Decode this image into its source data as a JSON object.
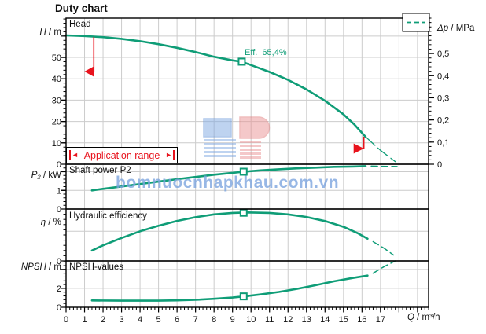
{
  "title": "Duty chart",
  "watermark": {
    "text": "bomnuocnhapkhau.com.vn",
    "logo_text": "LP"
  },
  "colors": {
    "curve": "#0f9d77",
    "red": "#e8131d",
    "grid": "#cccccc",
    "axis": "#000000",
    "watermark_text": "#7da5de",
    "logo_blue": "#7fa9e2",
    "logo_red": "#ea9394"
  },
  "x_axis": {
    "label_var": "Q",
    "label_unit": " / m³/h",
    "ticks": [
      0,
      1,
      2,
      3,
      4,
      5,
      6,
      7,
      8,
      9,
      10,
      11,
      12,
      13,
      14,
      15,
      16,
      17
    ],
    "min": 0,
    "max": 19.6
  },
  "chart_data": [
    {
      "type": "line",
      "panel": "head",
      "panel_title": "Head",
      "ylabel_var": "H",
      "ylabel_unit": " / m",
      "ylabel": "H / m",
      "ylim": [
        0,
        68.4
      ],
      "yticks": [
        0,
        10,
        20,
        30,
        40,
        50
      ],
      "y2label_var": "Δp",
      "y2label_unit": " / MPa",
      "y2label": "Δp / MPa",
      "y2lim": [
        0,
        0.66
      ],
      "y2ticks": [
        "0",
        "0,1",
        "0,2",
        "0,3",
        "0,4",
        "0,5"
      ],
      "legend": {
        "style": "dashed-teal-line",
        "position": "top-right"
      },
      "series": [
        {
          "name": "head-solid",
          "style": "solid",
          "points": [
            [
              0,
              60.3
            ],
            [
              1,
              60.0
            ],
            [
              2,
              59.5
            ],
            [
              3,
              58.7
            ],
            [
              4,
              57.6
            ],
            [
              5,
              56.2
            ],
            [
              6,
              54.5
            ],
            [
              7,
              52.5
            ],
            [
              8,
              50.3
            ],
            [
              9,
              48.6
            ],
            [
              9.5,
              48.0
            ],
            [
              10,
              46.4
            ],
            [
              11,
              43.2
            ],
            [
              12,
              39.5
            ],
            [
              13,
              35.0
            ],
            [
              14,
              29.7
            ],
            [
              15,
              23.3
            ],
            [
              15.6,
              18.5
            ],
            [
              16.2,
              12.8
            ]
          ]
        },
        {
          "name": "head-extrapolated",
          "style": "thin-dash",
          "points": [
            [
              16.2,
              12.8
            ],
            [
              17.0,
              6.5
            ],
            [
              17.8,
              1.2
            ]
          ]
        }
      ],
      "duty_point": {
        "q": 9.5,
        "value": 48.0,
        "label": "Eff.  65,4%"
      },
      "range_markers": {
        "left_q": 1.5,
        "right_q": 16.1
      },
      "range_label": "Application range",
      "range_arrows": {
        "left": "◄",
        "right": "►"
      }
    },
    {
      "type": "line",
      "panel": "p2",
      "panel_title": "Shaft power P2",
      "ylabel_var": "P₂",
      "ylabel_unit": " / kW",
      "ylabel": "P2 / kW",
      "ylim": [
        0,
        2.4
      ],
      "yticks": [
        0,
        1
      ],
      "series": [
        {
          "name": "p2-solid",
          "style": "solid",
          "points": [
            [
              1.4,
              1.0
            ],
            [
              2,
              1.08
            ],
            [
              3,
              1.21
            ],
            [
              4,
              1.34
            ],
            [
              5,
              1.47
            ],
            [
              6,
              1.6
            ],
            [
              7,
              1.72
            ],
            [
              8,
              1.84
            ],
            [
              9,
              1.94
            ],
            [
              9.6,
              2.0
            ],
            [
              10.5,
              2.07
            ],
            [
              11.5,
              2.13
            ],
            [
              12.5,
              2.18
            ],
            [
              13.5,
              2.22
            ],
            [
              14.5,
              2.26
            ],
            [
              15.5,
              2.28
            ],
            [
              16.2,
              2.3
            ]
          ]
        },
        {
          "name": "p2-extrapolated",
          "style": "dashed",
          "points": [
            [
              16.5,
              2.3
            ],
            [
              17.9,
              2.28
            ]
          ]
        }
      ],
      "duty_point": {
        "q": 9.6,
        "value": 2.0
      }
    },
    {
      "type": "line",
      "panel": "eta",
      "panel_title": "Hydraulic efficiency",
      "ylabel_var": "η",
      "ylabel_unit": " / %",
      "ylabel": "eta / %",
      "ylim": [
        0,
        70
      ],
      "yticks": [
        0
      ],
      "series": [
        {
          "name": "eta-solid",
          "style": "solid",
          "points": [
            [
              1.4,
              14
            ],
            [
              2,
              21
            ],
            [
              3,
              31
            ],
            [
              4,
              40
            ],
            [
              5,
              47.5
            ],
            [
              6,
              54
            ],
            [
              7,
              59
            ],
            [
              8,
              62.8
            ],
            [
              9,
              64.8
            ],
            [
              9.8,
              65.4
            ],
            [
              11,
              64.8
            ],
            [
              12,
              62.8
            ],
            [
              13,
              59.3
            ],
            [
              14,
              53.8
            ],
            [
              15,
              46
            ],
            [
              15.8,
              37
            ],
            [
              16.3,
              30
            ]
          ]
        },
        {
          "name": "eta-extrapolated",
          "style": "dashed",
          "points": [
            [
              16.6,
              26
            ],
            [
              17.2,
              17
            ],
            [
              17.7,
              8
            ]
          ]
        }
      ],
      "duty_point": {
        "q": 9.6,
        "value": 65.0
      }
    },
    {
      "type": "line",
      "panel": "npsh",
      "panel_title": "NPSH-values",
      "ylabel_var": "NPSH",
      "ylabel_unit": " / m",
      "ylabel": "NPSH / m",
      "ylim": [
        0,
        4.9
      ],
      "yticks": [
        0,
        2
      ],
      "series": [
        {
          "name": "npsh-solid",
          "style": "solid",
          "points": [
            [
              1.4,
              0.72
            ],
            [
              3,
              0.7
            ],
            [
              5,
              0.7
            ],
            [
              6,
              0.73
            ],
            [
              7,
              0.79
            ],
            [
              8,
              0.9
            ],
            [
              9,
              1.03
            ],
            [
              9.6,
              1.15
            ],
            [
              10.5,
              1.35
            ],
            [
              11.5,
              1.62
            ],
            [
              12.5,
              1.95
            ],
            [
              13.5,
              2.33
            ],
            [
              14.5,
              2.75
            ],
            [
              15.5,
              3.1
            ],
            [
              16.3,
              3.35
            ]
          ]
        },
        {
          "name": "npsh-extrapolated",
          "style": "dashed",
          "points": [
            [
              16.6,
              3.6
            ],
            [
              17.2,
              4.3
            ],
            [
              17.8,
              4.9
            ]
          ]
        }
      ],
      "duty_point": {
        "q": 9.6,
        "value": 1.15
      }
    }
  ]
}
